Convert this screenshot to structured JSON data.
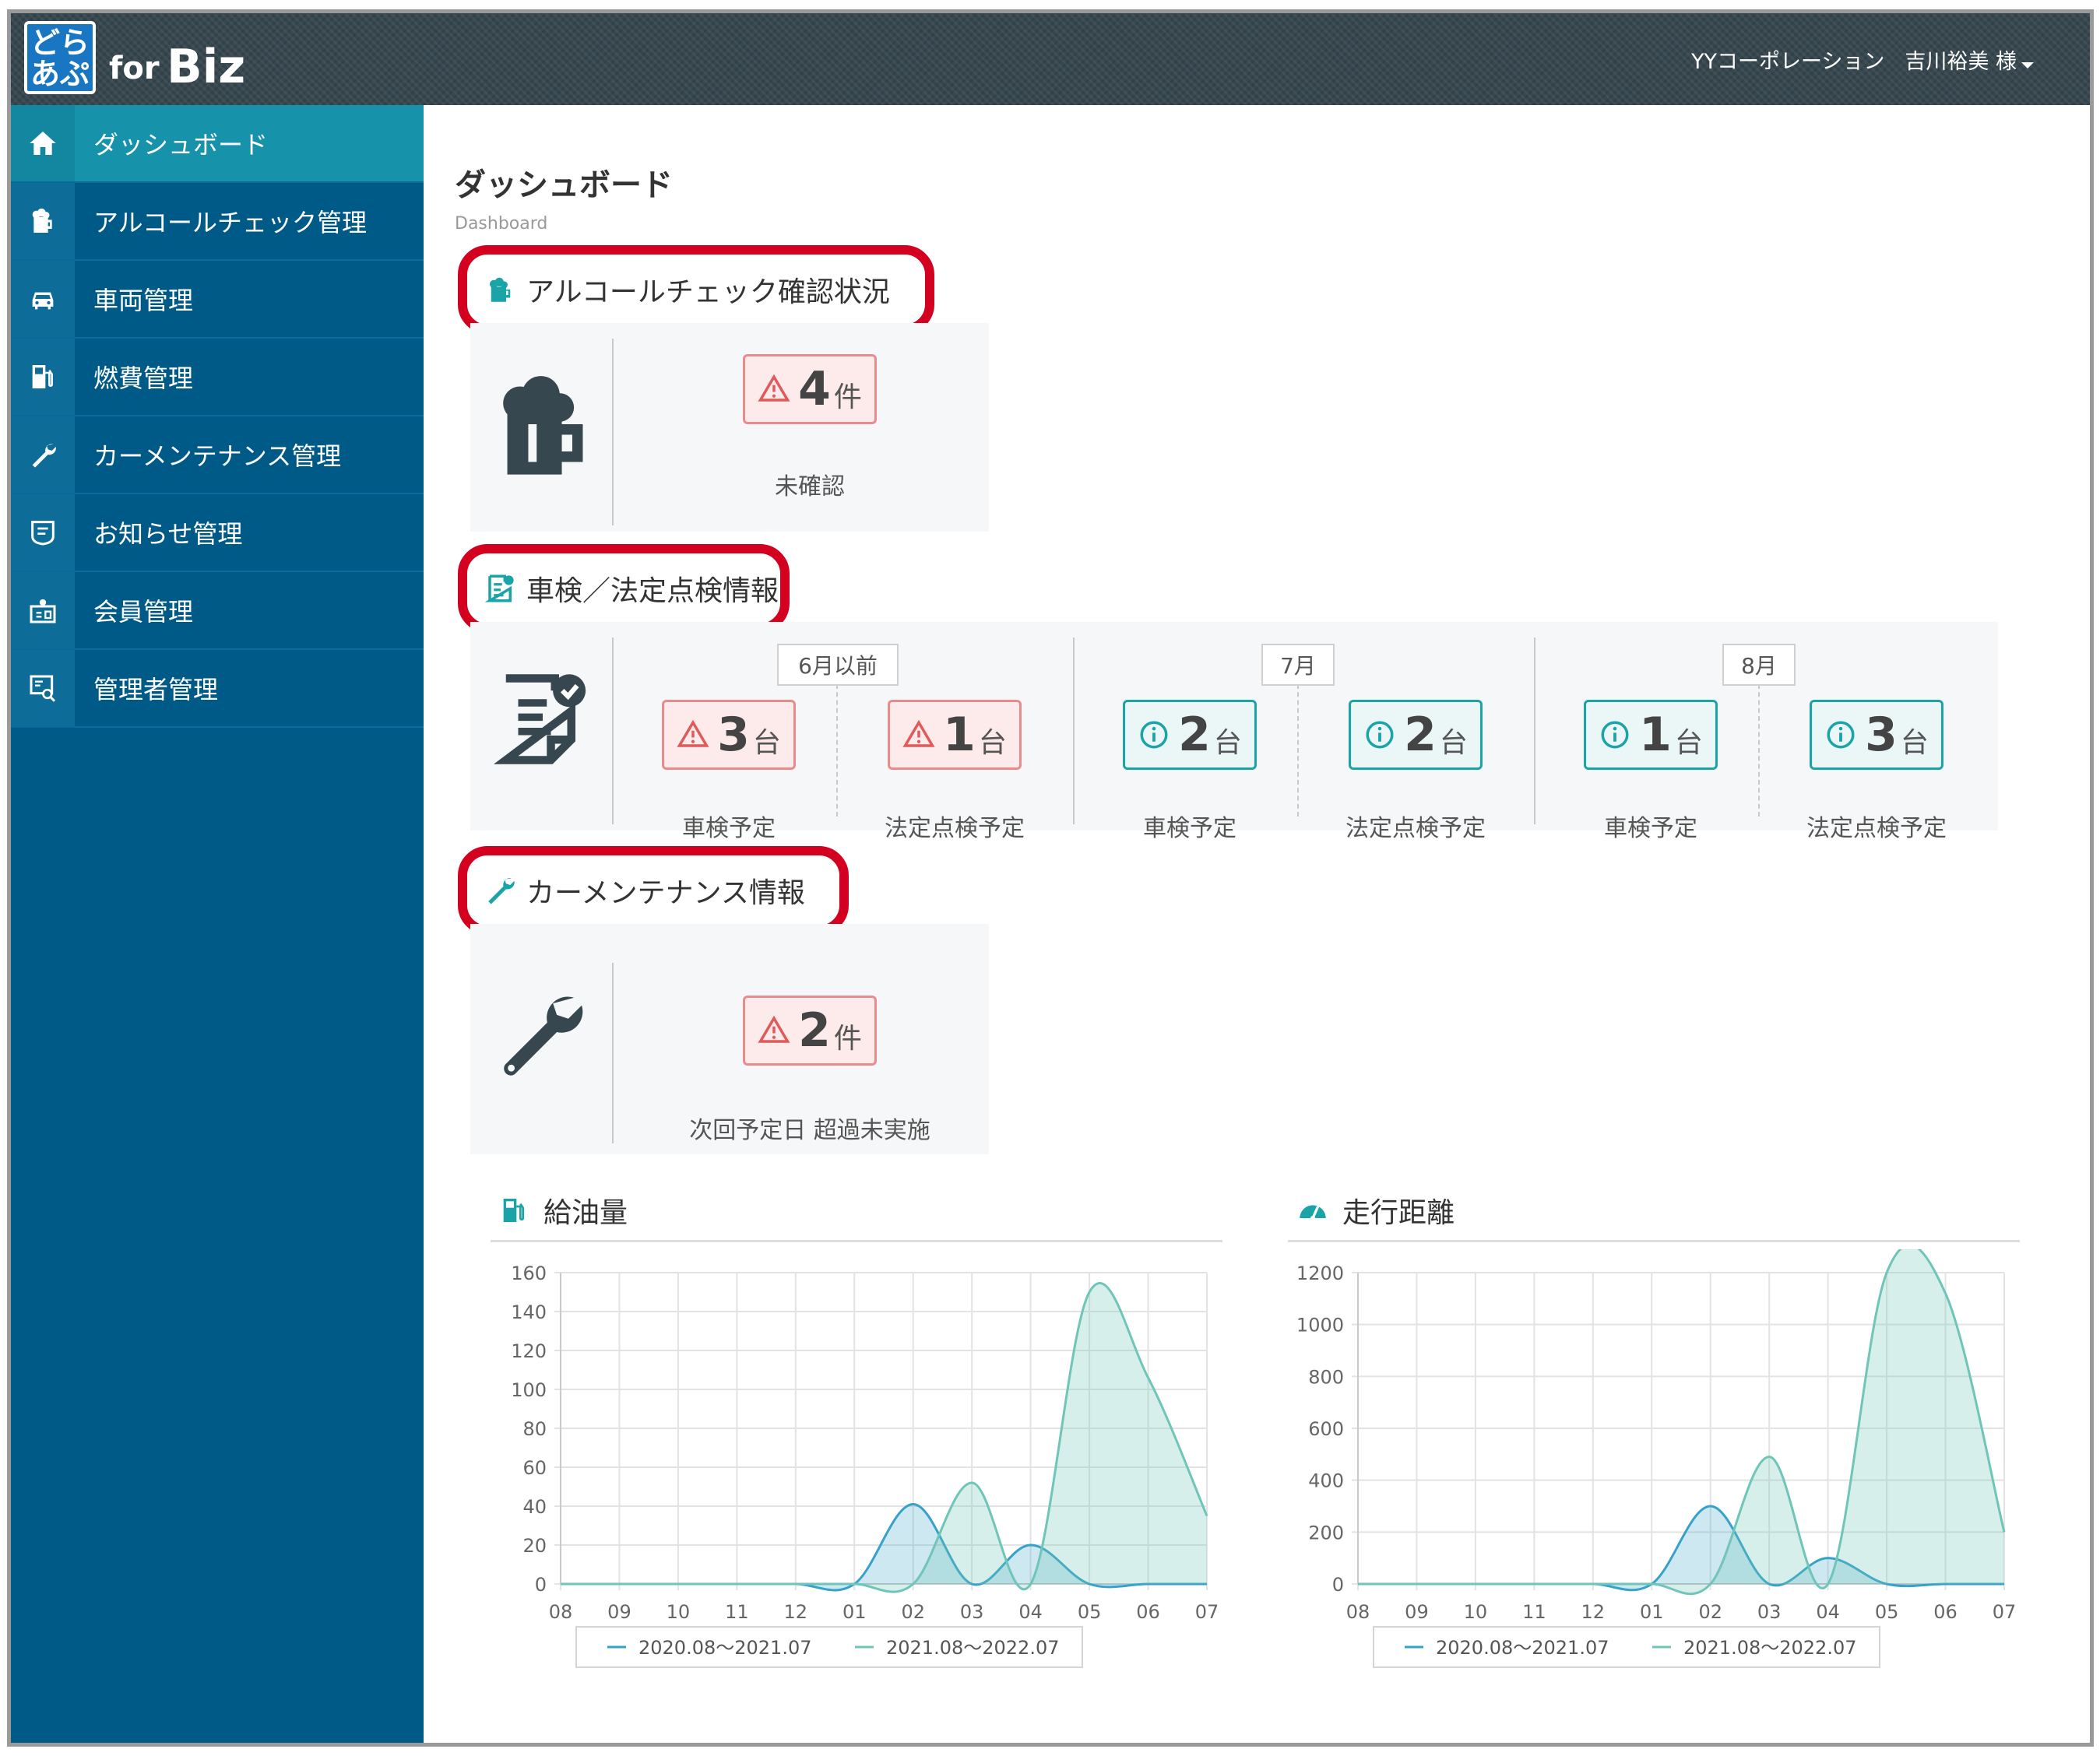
{
  "header": {
    "logo_line1": "どら",
    "logo_line2": "あぷ",
    "logo_for": "for",
    "logo_biz": "Biz",
    "company": "YYコーポレーション",
    "user": "吉川裕美 様"
  },
  "sidebar": {
    "items": [
      {
        "label": "ダッシュボード",
        "icon": "home-icon"
      },
      {
        "label": "アルコールチェック管理",
        "icon": "beer-mug-icon"
      },
      {
        "label": "車両管理",
        "icon": "car-icon"
      },
      {
        "label": "燃費管理",
        "icon": "fuel-pump-icon"
      },
      {
        "label": "カーメンテナンス管理",
        "icon": "wrench-icon"
      },
      {
        "label": "お知らせ管理",
        "icon": "notice-icon"
      },
      {
        "label": "会員管理",
        "icon": "member-icon"
      },
      {
        "label": "管理者管理",
        "icon": "admin-icon"
      }
    ]
  },
  "page": {
    "title": "ダッシュボード",
    "subtitle": "Dashboard"
  },
  "alcohol": {
    "heading": "アルコールチェック確認状況",
    "count": "4",
    "unit": "件",
    "caption": "未確認"
  },
  "inspection": {
    "heading": "車検／法定点検情報",
    "periods": [
      {
        "label": "6月以前",
        "items": [
          {
            "status": "warn",
            "count": "3",
            "unit": "台",
            "caption": "車検予定"
          },
          {
            "status": "warn",
            "count": "1",
            "unit": "台",
            "caption": "法定点検予定"
          }
        ]
      },
      {
        "label": "7月",
        "items": [
          {
            "status": "info",
            "count": "2",
            "unit": "台",
            "caption": "車検予定"
          },
          {
            "status": "info",
            "count": "2",
            "unit": "台",
            "caption": "法定点検予定"
          }
        ]
      },
      {
        "label": "8月",
        "items": [
          {
            "status": "info",
            "count": "1",
            "unit": "台",
            "caption": "車検予定"
          },
          {
            "status": "info",
            "count": "3",
            "unit": "台",
            "caption": "法定点検予定"
          }
        ]
      }
    ]
  },
  "maintenance": {
    "heading": "カーメンテナンス情報",
    "count": "2",
    "unit": "件",
    "caption": "次回予定日 超過未実施"
  },
  "colors": {
    "series1": "#36a2c9",
    "series2": "#6ec5b8",
    "warn": "#e05a5a",
    "info": "#1aa4a8"
  },
  "chart_data": [
    {
      "type": "area",
      "title": "給油量",
      "categories": [
        "08",
        "09",
        "10",
        "11",
        "12",
        "01",
        "02",
        "03",
        "04",
        "05",
        "06",
        "07"
      ],
      "ylim": [
        0,
        160
      ],
      "yticks": [
        0,
        20,
        40,
        60,
        80,
        100,
        120,
        140,
        160
      ],
      "grid": true,
      "legend": "bottom",
      "series": [
        {
          "name": "2020.08～2021.07",
          "values": [
            0,
            0,
            0,
            0,
            0,
            0,
            41,
            0,
            20,
            0,
            0,
            0
          ]
        },
        {
          "name": "2021.08～2022.07",
          "values": [
            0,
            0,
            0,
            0,
            0,
            0,
            0,
            52,
            0,
            150,
            106,
            35
          ]
        }
      ]
    },
    {
      "type": "area",
      "title": "走行距離",
      "categories": [
        "08",
        "09",
        "10",
        "11",
        "12",
        "01",
        "02",
        "03",
        "04",
        "05",
        "06",
        "07"
      ],
      "ylim": [
        0,
        1200
      ],
      "yticks": [
        0,
        200,
        400,
        600,
        800,
        1000,
        1200
      ],
      "grid": true,
      "legend": "bottom",
      "series": [
        {
          "name": "2020.08～2021.07",
          "values": [
            0,
            0,
            0,
            0,
            0,
            0,
            300,
            0,
            100,
            0,
            0,
            0
          ]
        },
        {
          "name": "2021.08～2022.07",
          "values": [
            0,
            0,
            0,
            0,
            0,
            0,
            0,
            490,
            0,
            1200,
            1120,
            200
          ]
        }
      ]
    }
  ]
}
